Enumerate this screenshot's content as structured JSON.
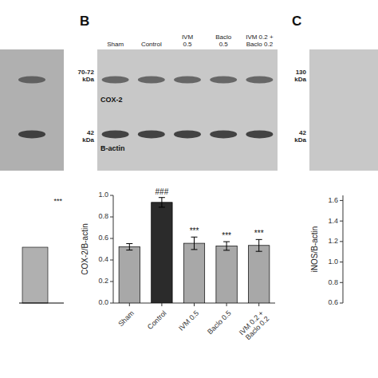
{
  "chart_data": [
    {
      "type": "blot",
      "annotations": [
        "***"
      ]
    },
    {
      "type": "bar",
      "title": "B",
      "lanes": [
        "Sham",
        "Control",
        "IVM\n0.5",
        "Baclo\n0.5",
        "IVM 0.2 +\nBaclo 0.2"
      ],
      "bands": [
        "COX-2",
        "B-actin"
      ],
      "kda_labels": [
        "70-72\nkDa",
        "42\nkDa"
      ],
      "categories": [
        "Sham",
        "Control",
        "IVM 0.5",
        "Baclo 0.5",
        "IVM 0.2 +\nBaclo 0.2"
      ],
      "values": [
        0.522,
        0.935,
        0.555,
        0.53,
        0.535
      ],
      "errors": [
        0.03,
        0.045,
        0.058,
        0.04,
        0.055
      ],
      "colors": [
        "#a8a8a8",
        "#2b2b2b",
        "#a8a8a8",
        "#a8a8a8",
        "#a8a8a8"
      ],
      "significance": [
        null,
        "###",
        "***",
        "***",
        "***"
      ],
      "ylabel": "COX-2/B-actin",
      "ylim": [
        0.0,
        1.0
      ],
      "yticks": [
        {
          "value": 0.0,
          "label": "0.0"
        },
        0.2,
        0.4,
        0.6,
        0.8,
        {
          "value": 1.0,
          "label": "1.0"
        }
      ]
    },
    {
      "type": "bar",
      "title": "C",
      "kda_labels": [
        "130\nkDa",
        "42\nkDa"
      ],
      "ylabel": "iNOS/B-actin",
      "ylim": [
        0.6,
        1.65
      ],
      "yticks": [
        0.6,
        0.8,
        {
          "value": 1.0,
          "label": "1.0"
        },
        1.2,
        1.4,
        1.6
      ]
    }
  ]
}
